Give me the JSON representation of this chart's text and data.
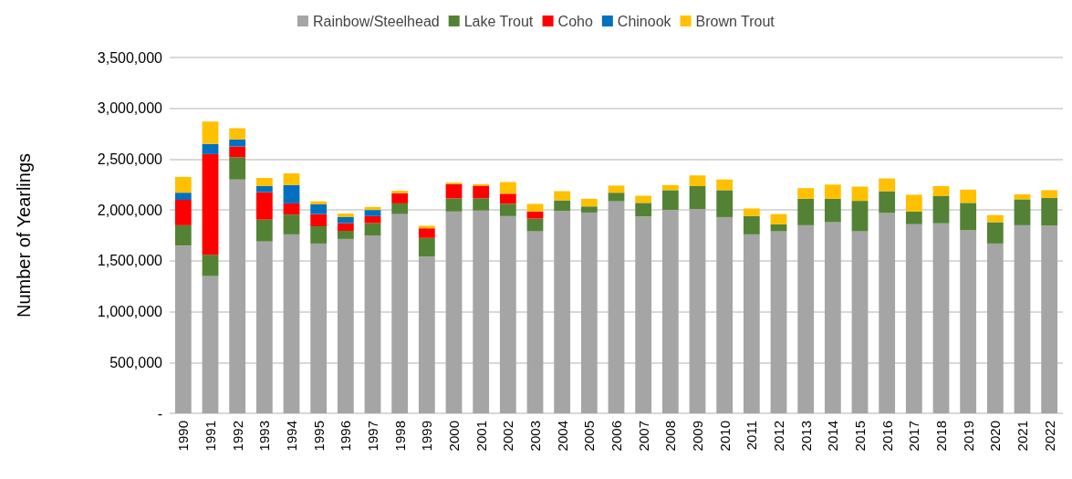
{
  "chart_data": {
    "type": "bar",
    "stacked": true,
    "ylabel": "Number of Yearlings",
    "categories": [
      "1990",
      "1991",
      "1992",
      "1993",
      "1994",
      "1995",
      "1996",
      "1997",
      "1998",
      "1999",
      "2000",
      "2001",
      "2002",
      "2003",
      "2004",
      "2005",
      "2006",
      "2007",
      "2008",
      "2009",
      "2010",
      "2011",
      "2012",
      "2013",
      "2014",
      "2015",
      "2016",
      "2017",
      "2018",
      "2019",
      "2020",
      "2021",
      "2022"
    ],
    "series": [
      {
        "name": "Rainbow/Steelhead",
        "color": "#a5a5a5",
        "values": [
          1650000,
          1350000,
          2300000,
          1690000,
          1760000,
          1670000,
          1715000,
          1750000,
          1960000,
          1540000,
          1985000,
          1995000,
          1940000,
          1790000,
          1990000,
          1975000,
          2085000,
          1935000,
          2000000,
          2010000,
          1930000,
          1760000,
          1790000,
          1850000,
          1880000,
          1790000,
          1970000,
          1860000,
          1870000,
          1800000,
          1670000,
          1850000,
          1845000
        ]
      },
      {
        "name": "Lake Trout",
        "color": "#548235",
        "values": [
          200000,
          210000,
          220000,
          215000,
          195000,
          170000,
          80000,
          120000,
          105000,
          185000,
          130000,
          120000,
          120000,
          125000,
          105000,
          60000,
          85000,
          135000,
          195000,
          225000,
          265000,
          180000,
          70000,
          260000,
          230000,
          300000,
          215000,
          125000,
          265000,
          270000,
          210000,
          255000,
          275000
        ]
      },
      {
        "name": "Coho",
        "color": "#ff0000",
        "values": [
          250000,
          990000,
          105000,
          270000,
          110000,
          120000,
          75000,
          70000,
          100000,
          95000,
          140000,
          125000,
          100000,
          70000,
          0,
          0,
          0,
          0,
          0,
          0,
          0,
          0,
          0,
          0,
          0,
          0,
          0,
          0,
          0,
          0,
          0,
          0,
          0
        ]
      },
      {
        "name": "Chinook",
        "color": "#0070c0",
        "values": [
          70000,
          100000,
          70000,
          60000,
          180000,
          95000,
          60000,
          60000,
          0,
          0,
          0,
          0,
          0,
          0,
          0,
          0,
          0,
          0,
          0,
          0,
          0,
          0,
          0,
          0,
          0,
          0,
          0,
          0,
          0,
          0,
          0,
          0,
          0
        ]
      },
      {
        "name": "Brown Trout",
        "color": "#ffc000",
        "values": [
          155000,
          220000,
          110000,
          80000,
          115000,
          30000,
          35000,
          30000,
          25000,
          25000,
          15000,
          15000,
          115000,
          75000,
          90000,
          75000,
          70000,
          70000,
          50000,
          105000,
          105000,
          75000,
          100000,
          105000,
          140000,
          140000,
          125000,
          165000,
          100000,
          130000,
          70000,
          50000,
          75000
        ]
      }
    ],
    "ylim": [
      0,
      3500000
    ],
    "yticks": [
      {
        "value": 0,
        "label": "-"
      },
      {
        "value": 500000,
        "label": "500,000"
      },
      {
        "value": 1000000,
        "label": "1,000,000"
      },
      {
        "value": 1500000,
        "label": "1,500,000"
      },
      {
        "value": 2000000,
        "label": "2,000,000"
      },
      {
        "value": 2500000,
        "label": "2,500,000"
      },
      {
        "value": 3000000,
        "label": "3,000,000"
      },
      {
        "value": 3500000,
        "label": "3,500,000"
      }
    ],
    "grid": "y",
    "legend": "top"
  }
}
